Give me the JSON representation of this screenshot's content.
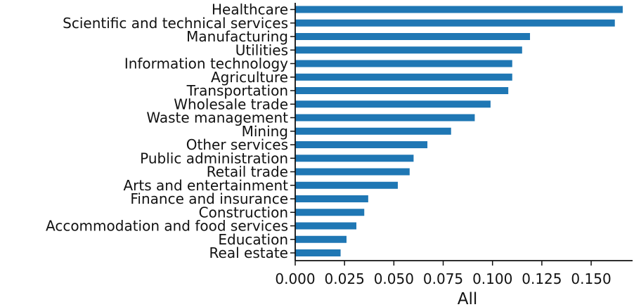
{
  "chart_data": {
    "type": "bar",
    "orientation": "horizontal",
    "categories": [
      "Healthcare",
      "Scientific and technical services",
      "Manufacturing",
      "Utilities",
      "Information technology",
      "Agriculture",
      "Transportation",
      "Wholesale trade",
      "Waste management",
      "Mining",
      "Other services",
      "Public administration",
      "Retail trade",
      "Arts and entertainment",
      "Finance and insurance",
      "Construction",
      "Accommodation and food services",
      "Education",
      "Real estate"
    ],
    "values": [
      0.166,
      0.162,
      0.119,
      0.115,
      0.11,
      0.11,
      0.108,
      0.099,
      0.091,
      0.079,
      0.067,
      0.06,
      0.058,
      0.052,
      0.037,
      0.035,
      0.031,
      0.026,
      0.023
    ],
    "xlabel": "All",
    "ylabel": "",
    "xlim": [
      0,
      0.171
    ],
    "xticks": [
      "0.000",
      "0.025",
      "0.050",
      "0.075",
      "0.100",
      "0.125",
      "0.150"
    ],
    "bar_color": "#1f77b4",
    "grid": false
  }
}
